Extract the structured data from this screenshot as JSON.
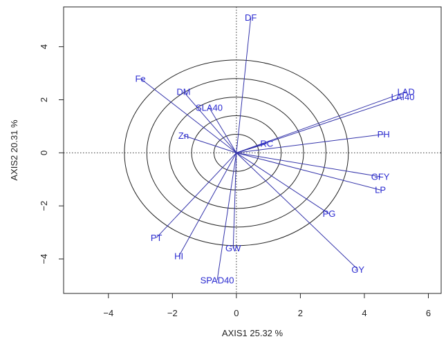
{
  "chart_data": {
    "type": "biplot",
    "xlabel": "AXIS1 25.32 %",
    "ylabel": "AXIS2 20.31 %",
    "xlim": [
      -5.4,
      6.4
    ],
    "ylim": [
      -5.3,
      5.5
    ],
    "x_ticks": [
      -4,
      -2,
      0,
      2,
      4,
      6
    ],
    "y_ticks": [
      -4,
      -2,
      0,
      2,
      4
    ],
    "grid": false,
    "reference_lines": {
      "x": 0,
      "y": 0,
      "style": "dotted"
    },
    "circles": {
      "center": [
        0,
        0
      ],
      "radii": [
        0.7,
        1.4,
        2.1,
        2.8,
        3.5
      ]
    },
    "colors": {
      "arrow": "#3333aa",
      "label": "#2a2ad0",
      "circle": "#222222",
      "axis": "#222222"
    },
    "variables": [
      {
        "name": "DF",
        "x": 0.45,
        "y": 5.1
      },
      {
        "name": "Fe",
        "x": -3.0,
        "y": 2.8
      },
      {
        "name": "DM",
        "x": -1.65,
        "y": 2.3
      },
      {
        "name": "SLA40",
        "x": -0.85,
        "y": 1.7
      },
      {
        "name": "Zn",
        "x": -1.65,
        "y": 0.65
      },
      {
        "name": "RC",
        "x": 0.95,
        "y": 0.35
      },
      {
        "name": "LAD",
        "x": 5.3,
        "y": 2.3
      },
      {
        "name": "LAI40",
        "x": 5.2,
        "y": 2.1
      },
      {
        "name": "PH",
        "x": 4.6,
        "y": 0.7
      },
      {
        "name": "GFY",
        "x": 4.5,
        "y": -0.9
      },
      {
        "name": "LP",
        "x": 4.5,
        "y": -1.4
      },
      {
        "name": "PG",
        "x": 2.9,
        "y": -2.3
      },
      {
        "name": "GY",
        "x": 3.8,
        "y": -4.4
      },
      {
        "name": "GW",
        "x": -0.1,
        "y": -3.6
      },
      {
        "name": "PT",
        "x": -2.5,
        "y": -3.2
      },
      {
        "name": "HI",
        "x": -1.8,
        "y": -3.9
      },
      {
        "name": "SPAD40",
        "x": -0.6,
        "y": -4.8
      }
    ]
  }
}
